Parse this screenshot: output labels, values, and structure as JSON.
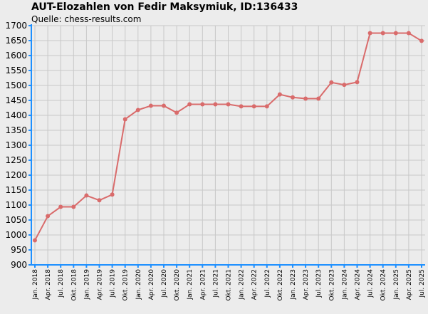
{
  "chart_data": {
    "type": "line",
    "title": "AUT-Elozahlen von Fedir Maksymiuk, ID:136433",
    "subtitle": "Quelle: chess-results.com",
    "xlabel": "",
    "ylabel": "",
    "ylim": [
      900,
      1700
    ],
    "y_ticks": [
      900,
      950,
      1000,
      1050,
      1100,
      1150,
      1200,
      1250,
      1300,
      1350,
      1400,
      1450,
      1500,
      1550,
      1600,
      1650,
      1700
    ],
    "grid": true,
    "legend": "none",
    "categories": [
      "Jan. 2018",
      "Apr. 2018",
      "Jul. 2018",
      "Okt. 2018",
      "Jan. 2019",
      "Apr. 2019",
      "Jul. 2019",
      "Okt. 2019",
      "Jan. 2020",
      "Apr. 2020",
      "Jul. 2020",
      "Okt. 2020",
      "Jan. 2021",
      "Apr. 2021",
      "Jul. 2021",
      "Okt. 2021",
      "Jan. 2022",
      "Apr. 2022",
      "Jul. 2022",
      "Okt. 2022",
      "Jan. 2023",
      "Apr. 2023",
      "Jul. 2023",
      "Okt. 2023",
      "Jan. 2024",
      "Apr. 2024",
      "Jul. 2024",
      "Okt. 2024",
      "Jan. 2025",
      "Apr. 2025",
      "Jul. 2025"
    ],
    "series": [
      {
        "values": [
          982,
          1063,
          1094,
          1094,
          1132,
          1116,
          1135,
          1387,
          1418,
          1432,
          1432,
          1409,
          1437,
          1437,
          1437,
          1437,
          1430,
          1430,
          1430,
          1470,
          1460,
          1456,
          1456,
          1510,
          1502,
          1511,
          1675,
          1675,
          1675,
          1675,
          1649
        ],
        "color": "#d96b6b"
      }
    ],
    "colors": {
      "background": "#ececec",
      "grid": "#c8c8c8",
      "axis": "#1e90ff",
      "line": "#d96b6b"
    }
  }
}
